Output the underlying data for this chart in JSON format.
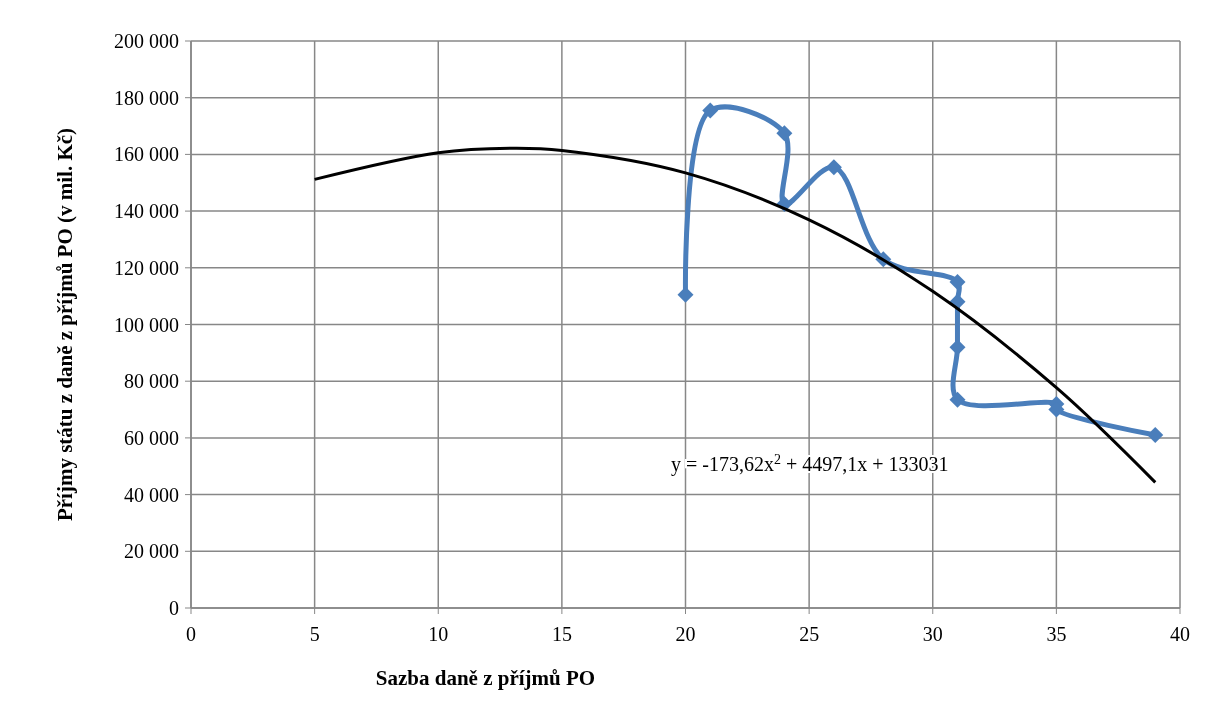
{
  "chart_data": {
    "type": "line",
    "xlabel": "Sazba daně z příjmů PO",
    "ylabel": "Příjmy státu z daně z příjmů PO (v mil. Kč)",
    "xlim": [
      0,
      40
    ],
    "xticks": [
      0,
      5,
      10,
      15,
      20,
      25,
      30,
      35,
      40
    ],
    "ylim": [
      0,
      200000
    ],
    "yticks": [
      {
        "value": 0,
        "label": "0"
      },
      {
        "value": 20000,
        "label": "20 000"
      },
      {
        "value": 40000,
        "label": "40 000"
      },
      {
        "value": 60000,
        "label": "60 000"
      },
      {
        "value": 80000,
        "label": "80 000"
      },
      {
        "value": 100000,
        "label": "100 000"
      },
      {
        "value": 120000,
        "label": "120 000"
      },
      {
        "value": 140000,
        "label": "140 000"
      },
      {
        "value": 160000,
        "label": "160 000"
      },
      {
        "value": 180000,
        "label": "180 000"
      },
      {
        "value": 200000,
        "label": "200 000"
      }
    ],
    "grid": true,
    "series": [
      {
        "type": "line",
        "color": "#4a7ebb",
        "marker": "diamond",
        "line_style": "solid",
        "x": [
          20,
          21,
          24,
          24,
          26,
          28,
          31,
          31,
          31,
          31,
          35,
          35,
          39
        ],
        "values": [
          110500,
          175500,
          167500,
          142500,
          155500,
          123000,
          115000,
          108000,
          92000,
          73500,
          72000,
          70000,
          61000
        ]
      },
      {
        "type": "line",
        "color": "#000000",
        "marker": "none",
        "line_style": "solid",
        "x": [
          5,
          10,
          13,
          15,
          20,
          25,
          30,
          35,
          39
        ],
        "values": [
          151200,
          160600,
          162200,
          161400,
          153500,
          136900,
          111700,
          77700,
          44300
        ]
      }
    ],
    "annotations": [
      "y = -173,62x$^{2}$ + 4497,1x + 133031"
    ]
  }
}
